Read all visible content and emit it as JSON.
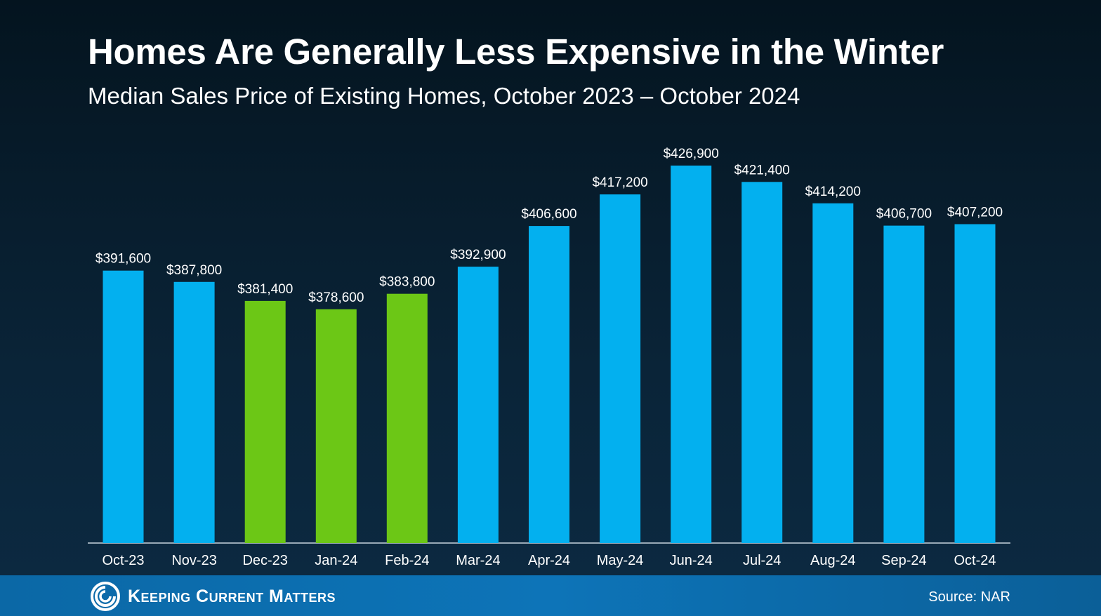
{
  "header": {
    "title": "Homes Are Generally Less Expensive in the Winter",
    "subtitle": "Median Sales Price of Existing Homes, October 2023 – October 2024"
  },
  "footer": {
    "brand": "Keeping Current Matters",
    "source": "Source: NAR"
  },
  "colors": {
    "highlight": "#6cc716",
    "default": "#03b0ef",
    "background": "#071b2a",
    "footer": "#0d6cad"
  },
  "chart_data": {
    "type": "bar",
    "categories": [
      "Oct-23",
      "Nov-23",
      "Dec-23",
      "Jan-24",
      "Feb-24",
      "Mar-24",
      "Apr-24",
      "May-24",
      "Jun-24",
      "Jul-24",
      "Aug-24",
      "Sep-24",
      "Oct-24"
    ],
    "values": [
      391600,
      387800,
      381400,
      378600,
      383800,
      392900,
      406600,
      417200,
      426900,
      421400,
      414200,
      406700,
      407200
    ],
    "data_labels": [
      "$391,600",
      "$387,800",
      "$381,400",
      "$378,600",
      "$383,800",
      "$392,900",
      "$406,600",
      "$417,200",
      "$426,900",
      "$421,400",
      "$414,200",
      "$406,700",
      "$407,200"
    ],
    "highlighted_categories": [
      "Dec-23",
      "Jan-24",
      "Feb-24"
    ],
    "ylim": [
      300000,
      430000
    ],
    "grid": false,
    "legend": "none"
  }
}
